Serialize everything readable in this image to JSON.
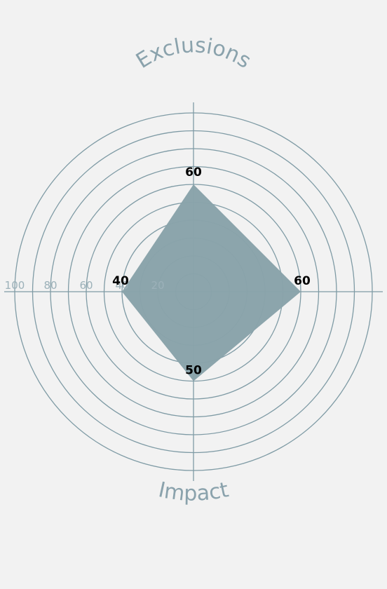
{
  "chart_data": {
    "type": "radar",
    "axes": [
      {
        "direction": "top",
        "title": "Exclusions",
        "value": 60,
        "label": "60"
      },
      {
        "direction": "right",
        "title": "",
        "value": 60,
        "label": "60"
      },
      {
        "direction": "bottom",
        "title": "Impact",
        "value": 50,
        "label": "50"
      },
      {
        "direction": "left",
        "title": "",
        "value": 40,
        "label": "40"
      }
    ],
    "rings": [
      10,
      20,
      30,
      40,
      50,
      60,
      70,
      80,
      90,
      100
    ],
    "tick_labels": [
      "20",
      "40",
      "60",
      "80",
      "100"
    ],
    "range": [
      0,
      100
    ],
    "colors": {
      "area": "#8aa3aa",
      "grid": "#7f9ba5",
      "axis_title": "#8aa2ac",
      "background": "#f2f2f2"
    }
  }
}
